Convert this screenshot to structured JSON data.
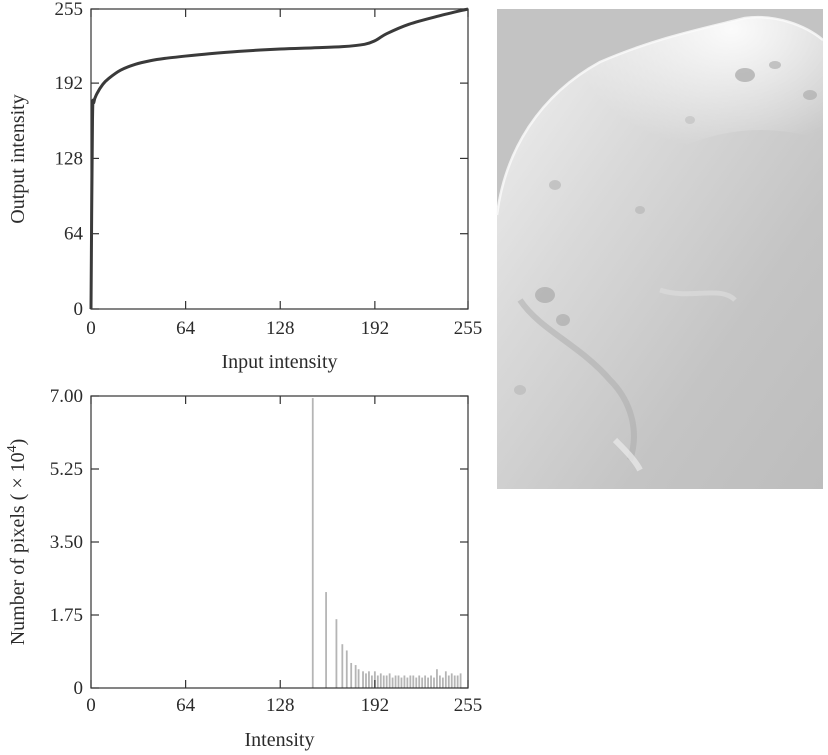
{
  "chart_data": [
    {
      "type": "line",
      "title": "",
      "xlabel": "Input intensity",
      "ylabel": "Output intensity",
      "xlim": [
        0,
        255
      ],
      "ylim": [
        0,
        255
      ],
      "xticks": [
        0,
        64,
        128,
        192,
        255
      ],
      "yticks": [
        0,
        64,
        128,
        192,
        255
      ],
      "grid": false,
      "series": [
        {
          "x": [
            0,
            1,
            2,
            4,
            8,
            12,
            20,
            30,
            40,
            50,
            64,
            80,
            100,
            128,
            150,
            170,
            185,
            192,
            200,
            215,
            235,
            255
          ],
          "y": [
            0,
            160,
            176,
            183,
            191,
            196,
            203,
            208,
            211,
            213,
            215,
            217,
            219,
            221,
            222,
            223,
            225,
            228,
            234,
            242,
            249,
            255
          ]
        }
      ]
    },
    {
      "type": "bar",
      "title": "",
      "xlabel": "Intensity",
      "ylabel_prefix": "Number of pixels (",
      "ylabel_times": " × 10",
      "ylabel_exp": "4",
      "ylabel_suffix": ")",
      "xlim": [
        0,
        255
      ],
      "ylim": [
        0,
        7.0
      ],
      "xticks": [
        "0",
        "64",
        "128",
        "192",
        "255"
      ],
      "yticks": [
        "0",
        "1.75",
        "3.50",
        "5.25",
        "7.00"
      ],
      "grid": false,
      "bars": {
        "x": [
          150,
          159,
          166,
          170,
          173,
          176,
          179,
          181,
          184,
          186,
          188,
          190,
          192,
          194,
          196,
          198,
          200,
          202,
          204,
          206,
          208,
          210,
          212,
          214,
          216,
          218,
          220,
          222,
          224,
          226,
          228,
          230,
          232,
          234,
          236,
          238,
          240,
          242,
          244,
          246,
          248,
          250
        ],
        "y": [
          6.95,
          2.3,
          1.65,
          1.05,
          0.9,
          0.6,
          0.55,
          0.45,
          0.4,
          0.35,
          0.4,
          0.3,
          0.4,
          0.3,
          0.35,
          0.3,
          0.3,
          0.35,
          0.25,
          0.3,
          0.3,
          0.25,
          0.3,
          0.25,
          0.3,
          0.3,
          0.25,
          0.3,
          0.25,
          0.3,
          0.25,
          0.3,
          0.25,
          0.45,
          0.3,
          0.25,
          0.4,
          0.3,
          0.35,
          0.3,
          0.3,
          0.35
        ]
      }
    }
  ],
  "image_panel": {
    "subject": "moon-surface-photo"
  }
}
